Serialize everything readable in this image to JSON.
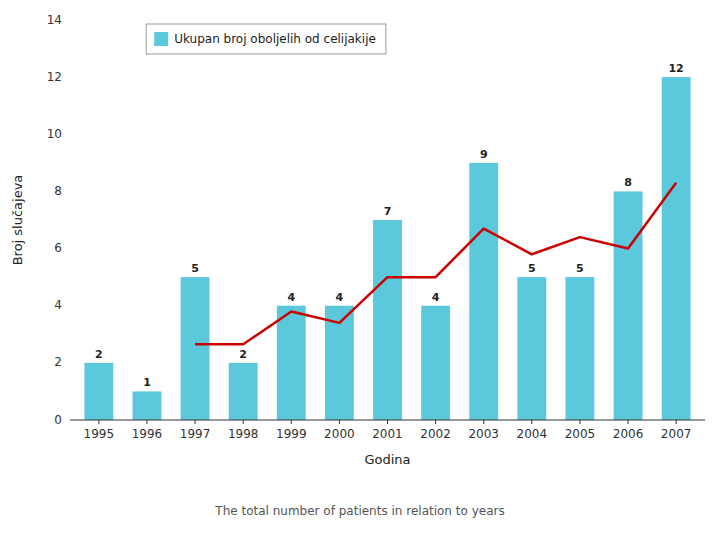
{
  "chart_data": {
    "type": "bar",
    "categories": [
      "1995",
      "1996",
      "1997",
      "1998",
      "1999",
      "2000",
      "2001",
      "2002",
      "2003",
      "2004",
      "2005",
      "2006",
      "2007"
    ],
    "series": [
      {
        "name": "Ukupan broj oboljelih od celijakije",
        "type": "bar",
        "color": "#5BC8DC",
        "values": [
          2,
          1,
          5,
          2,
          4,
          4,
          7,
          4,
          9,
          5,
          5,
          8,
          12
        ]
      },
      {
        "type": "line",
        "color": "#CC0000",
        "values": [
          null,
          null,
          2.65,
          2.65,
          3.8,
          3.4,
          5.0,
          5.0,
          6.7,
          5.8,
          6.4,
          6.0,
          8.3
        ]
      }
    ],
    "x_label": "Godina",
    "y_label": "Broj slučajeva",
    "caption": "The total number of patients in relation to years",
    "ylim": [
      0,
      14
    ],
    "yticks": [
      0,
      2,
      4,
      6,
      8,
      10,
      12,
      14
    ],
    "grid": false,
    "legend": "top-left",
    "data_labels": true
  }
}
